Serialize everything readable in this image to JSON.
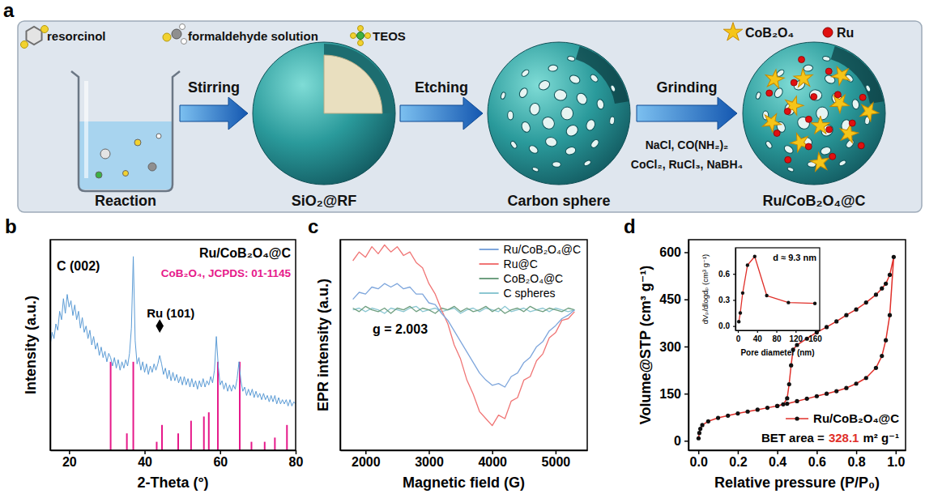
{
  "panel_labels": [
    "a",
    "b",
    "c",
    "d"
  ],
  "diagram": {
    "reagents": [
      "resorcinol",
      "formaldehyde solution",
      "TEOS"
    ],
    "steps": [
      "Stirring",
      "Etching",
      "Grinding"
    ],
    "grinding_reagents": [
      "NaCl, CO(NH₂)₂",
      "CoCl₂, RuCl₃, NaBH₄"
    ],
    "stages": [
      "Reaction",
      "SiO₂@RF",
      "Carbon sphere",
      "Ru/CoB₂O₄@C"
    ],
    "legend": [
      "CoB₂O₄",
      "Ru"
    ]
  },
  "chart_data": [
    {
      "type": "line",
      "x_label": "2-Theta (°)",
      "y_label": "Intensity (a.u.)",
      "xlim": [
        15,
        80
      ],
      "xticks": [
        20,
        40,
        60,
        80
      ],
      "ylim": [
        0,
        100
      ],
      "tick_labels": "x",
      "legend": "upper right",
      "series": [
        {
          "name": "Ru/CoB₂O₄@C",
          "color": "#5b9bd5",
          "x": [
            15,
            15.5,
            16,
            16.5,
            17,
            17.5,
            18,
            18.5,
            19,
            19.5,
            20,
            20.5,
            21,
            21.5,
            22,
            22.5,
            23,
            23.5,
            24,
            24.5,
            25,
            25.5,
            26,
            26.5,
            27,
            27.5,
            28,
            28.5,
            29,
            29.5,
            30,
            30.5,
            31,
            31.5,
            32,
            32.5,
            33,
            33.5,
            34,
            34.5,
            35,
            35.5,
            36,
            36.5,
            37,
            37.5,
            38,
            38.5,
            39,
            39.5,
            40,
            40.5,
            41,
            41.5,
            42,
            42.5,
            43,
            43.5,
            44,
            44.5,
            45,
            45.5,
            46,
            46.5,
            47,
            47.5,
            48,
            48.5,
            49,
            49.5,
            50,
            50.5,
            51,
            51.5,
            52,
            52.5,
            53,
            53.5,
            54,
            54.5,
            55,
            55.5,
            56,
            56.5,
            57,
            57.5,
            58,
            58.5,
            59,
            59.5,
            60,
            60.5,
            61,
            61.5,
            62,
            62.5,
            63,
            63.5,
            64,
            64.5,
            65,
            65.5,
            66,
            66.5,
            67,
            67.5,
            68,
            68.5,
            69,
            69.5,
            70,
            70.5,
            71,
            71.5,
            72,
            72.5,
            73,
            73.5,
            74,
            74.5,
            75,
            75.5,
            76,
            76.5,
            77,
            77.5,
            78,
            78.5,
            79,
            79.5,
            80
          ],
          "values": [
            50,
            56,
            53,
            60,
            57,
            66,
            62,
            72,
            65,
            74,
            68,
            71,
            64,
            69,
            62,
            66,
            58,
            63,
            56,
            59,
            53,
            57,
            50,
            54,
            48,
            51,
            45,
            49,
            44,
            47,
            42,
            46,
            44,
            40,
            44,
            39,
            43,
            38,
            42,
            39,
            43,
            40,
            46,
            58,
            92,
            52,
            41,
            44,
            38,
            42,
            37,
            41,
            36,
            40,
            37,
            41,
            38,
            41,
            45,
            41,
            36,
            39,
            34,
            38,
            33,
            37,
            33,
            36,
            32,
            35,
            31,
            35,
            31,
            34,
            30,
            34,
            30,
            33,
            29,
            33,
            30,
            34,
            30,
            33,
            31,
            35,
            32,
            38,
            54,
            40,
            31,
            33,
            29,
            32,
            28,
            31,
            28,
            31,
            29,
            34,
            42,
            33,
            28,
            30,
            26,
            29,
            26,
            29,
            25,
            28,
            25,
            27,
            24,
            27,
            24,
            26,
            23,
            26,
            23,
            26,
            22,
            25,
            22,
            24,
            22,
            24,
            21,
            24,
            21,
            23,
            22
          ]
        },
        {
          "name": "CoB₂O₄, JCPDS: 01-1145",
          "type": "stem",
          "color": "#e6198a",
          "x": [
            31,
            35.3,
            37,
            43.2,
            44.6,
            48.9,
            52.3,
            55.7,
            57,
            59.4,
            65.2,
            68.3,
            71.8,
            74.5,
            77.7
          ],
          "values": [
            42,
            8,
            42,
            4,
            12,
            8,
            14,
            16,
            18,
            42,
            42,
            4,
            4,
            6,
            12
          ]
        }
      ],
      "annotations": [
        {
          "text": "C (002)"
        },
        {
          "text": "Ru (101)",
          "x": 44,
          "marker": "diamond"
        }
      ]
    },
    {
      "type": "line",
      "x_label": "Magnetic field (G)",
      "y_label": "EPR intensity (a.u.)",
      "xlim": [
        1600,
        5500
      ],
      "xticks": [
        2000,
        3000,
        4000,
        5000
      ],
      "ylim": [
        -80,
        40
      ],
      "tick_labels": "x",
      "legend": "upper right",
      "x": [
        1800,
        1900,
        2000,
        2100,
        2200,
        2300,
        2400,
        2500,
        2600,
        2700,
        2800,
        2900,
        3000,
        3100,
        3200,
        3300,
        3400,
        3500,
        3600,
        3700,
        3800,
        3900,
        4000,
        4100,
        4200,
        4300,
        4400,
        4500,
        4600,
        4700,
        4800,
        4900,
        5000,
        5100,
        5200,
        5300
      ],
      "series": [
        {
          "name": "Ru/CoB₂O₄@C",
          "color": "#7ea6dc",
          "values": [
            6,
            10,
            9,
            13,
            12,
            15,
            13,
            15,
            12,
            13,
            9,
            9,
            4,
            3,
            -2,
            -6,
            -12,
            -18,
            -24,
            -30,
            -36,
            -40,
            -43,
            -42,
            -44,
            -38,
            -36,
            -30,
            -27,
            -21,
            -18,
            -12,
            -9,
            -5,
            -3,
            0
          ]
        },
        {
          "name": "Ru@C",
          "color": "#f07575",
          "values": [
            28,
            33,
            30,
            36,
            32,
            37,
            33,
            36,
            31,
            33,
            27,
            24,
            15,
            9,
            0,
            -8,
            -20,
            -28,
            -40,
            -48,
            -58,
            -62,
            -66,
            -60,
            -62,
            -52,
            -50,
            -40,
            -38,
            -29,
            -25,
            -16,
            -13,
            -6,
            -5,
            -1
          ]
        },
        {
          "name": "CoB₂O₄@C",
          "color": "#6f9f80",
          "values": [
            1,
            -1,
            2,
            0,
            -1,
            1,
            -2,
            1,
            0,
            2,
            -1,
            1,
            0,
            -2,
            1,
            0,
            2,
            -1,
            1,
            -1,
            0,
            2,
            -1,
            1,
            -2,
            0,
            1,
            -1,
            2,
            0,
            -1,
            1,
            0,
            -1,
            1,
            0
          ]
        },
        {
          "name": "C spheres",
          "color": "#8cc7d2",
          "values": [
            0,
            1,
            -1,
            1,
            0,
            -2,
            1,
            0,
            -1,
            1,
            2,
            -1,
            0,
            1,
            -1,
            0,
            1,
            -2,
            0,
            1,
            -1,
            1,
            0,
            -1,
            2,
            -1,
            0,
            1,
            -1,
            0,
            1,
            -1,
            1,
            0,
            -1,
            0
          ]
        }
      ],
      "annotations": [
        {
          "text": "g = 2.003"
        }
      ]
    },
    {
      "type": "line",
      "x_label": "Relative pressure (P/P₀)",
      "y_label": "Volume@STP (cm³ g⁻¹)",
      "xlim": [
        -0.05,
        1.05
      ],
      "xticks": [
        {
          "value": 0,
          "label": "0.0"
        },
        0.2,
        0.4,
        0.6,
        0.8,
        {
          "value": 1,
          "label": "1.0"
        }
      ],
      "ylim": [
        -30,
        640
      ],
      "yticks": [
        0,
        150,
        300,
        450,
        600
      ],
      "legend": "lower right",
      "series": [
        {
          "name": "Ru/CoB₂O₄@C",
          "color": "#e0302a",
          "marker": "circle",
          "x": [
            0.001,
            0.005,
            0.01,
            0.02,
            0.05,
            0.1,
            0.15,
            0.2,
            0.25,
            0.3,
            0.35,
            0.4,
            0.45,
            0.5,
            0.55,
            0.6,
            0.65,
            0.7,
            0.75,
            0.8,
            0.85,
            0.9,
            0.93,
            0.95,
            0.97,
            0.99,
            0.97,
            0.95,
            0.93,
            0.9,
            0.85,
            0.8,
            0.75,
            0.7,
            0.65,
            0.6,
            0.55,
            0.5,
            0.48,
            0.47,
            0.46,
            0.45,
            0.43,
            0.4
          ],
          "values": [
            8,
            25,
            38,
            50,
            62,
            73,
            80,
            87,
            93,
            99,
            105,
            111,
            118,
            126,
            134,
            142,
            150,
            158,
            168,
            182,
            200,
            232,
            270,
            320,
            400,
            585,
            528,
            500,
            485,
            465,
            440,
            418,
            400,
            380,
            362,
            345,
            325,
            305,
            290,
            240,
            180,
            135,
            116,
            111
          ]
        }
      ],
      "annotations": [
        {
          "label": "BET area =",
          "value": 328.1,
          "unit": "m² g⁻¹"
        }
      ]
    },
    {
      "type": "line",
      "x_label": "Pore diameter (nm)",
      "y_label": "dVₚ/dlogdₚ (cm³ g⁻¹)",
      "xlim": [
        -5,
        170
      ],
      "xticks": [
        0,
        40,
        80,
        120,
        160
      ],
      "ylim": [
        -0.05,
        0.9
      ],
      "yticks": [
        {
          "value": 0,
          "label": "0.0"
        },
        0.3,
        0.6
      ],
      "series": [
        {
          "color": "#e0302a",
          "marker": "circle",
          "x": [
            2,
            5,
            10,
            20,
            35,
            60,
            105,
            160
          ],
          "values": [
            0.05,
            0.15,
            0.38,
            0.7,
            0.8,
            0.35,
            0.27,
            0.26
          ]
        }
      ],
      "annotations": [
        {
          "text": "d ≈ 9.3 nm"
        }
      ]
    }
  ]
}
